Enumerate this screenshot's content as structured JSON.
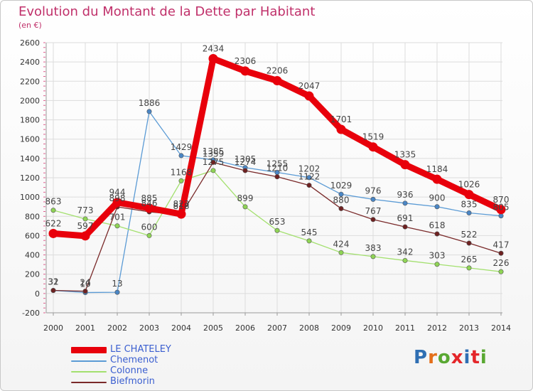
{
  "title": "Evolution du Montant de la Dette par Habitant",
  "subtitle": "(en €)",
  "logo": {
    "text": "Proxiti",
    "colors": [
      "#2f6fb3",
      "#e46f1a",
      "#59a832",
      "#e4262a",
      "#2f6fb3",
      "#e4262a",
      "#59a832"
    ]
  },
  "chart_data": {
    "type": "line",
    "x": [
      "2000",
      "2001",
      "2002",
      "2003",
      "2004",
      "2005",
      "2006",
      "2007",
      "2008",
      "2009",
      "2010",
      "2011",
      "2012",
      "2013",
      "2014"
    ],
    "ylim": [
      -200,
      2600
    ],
    "yticks": [
      "-200",
      "0",
      "200",
      "400",
      "600",
      "800",
      "1000",
      "1200",
      "1400",
      "1600",
      "1800",
      "2000",
      "2200",
      "2400",
      "2600"
    ],
    "grid": true,
    "legend_position": "bottom-left",
    "series": [
      {
        "name": "LE CHATELEY",
        "color": "#e8000b",
        "marker_color": "#e8000b",
        "values": [
          622,
          597,
          944,
          885,
          823,
          2434,
          2306,
          2206,
          2047,
          1701,
          1519,
          1335,
          1184,
          1026,
          870
        ],
        "labels": [
          "622",
          "597",
          "944",
          "885",
          "823",
          "2434",
          "2306",
          "2206",
          "2047",
          "1701",
          "1519",
          "1335",
          "1184",
          "1026",
          "870"
        ]
      },
      {
        "name": "Chemenot",
        "color": "#5b9bd5",
        "marker_color": "#4a86c5",
        "values": [
          31,
          10,
          13,
          1886,
          1429,
          1385,
          1305,
          1255,
          1202,
          1029,
          976,
          936,
          900,
          835,
          805
        ],
        "labels": [
          "31",
          "10",
          "13",
          "1886",
          "1429",
          "1385",
          "1305",
          "1255",
          "1202",
          "1029",
          "976",
          "936",
          "900",
          "835",
          "805"
        ]
      },
      {
        "name": "Colonne",
        "color": "#a3e06e",
        "marker_color": "#8fd455",
        "values": [
          863,
          773,
          701,
          600,
          1168,
          1275,
          899,
          653,
          545,
          424,
          383,
          342,
          303,
          265,
          226
        ],
        "labels": [
          "863",
          "773",
          "701",
          "600",
          "1168",
          "1275",
          "899",
          "653",
          "545",
          "424",
          "383",
          "342",
          "303",
          "265",
          "226"
        ]
      },
      {
        "name": "Biefmorin",
        "color": "#7a2a2a",
        "marker_color": "#6e2121",
        "values": [
          32,
          24,
          898,
          846,
          818,
          1359,
          1274,
          1210,
          1122,
          880,
          767,
          691,
          618,
          522,
          417
        ],
        "labels": [
          "32",
          "24",
          "898",
          "846",
          "818",
          "1359",
          "1274",
          "1210",
          "1122",
          "880",
          "767",
          "691",
          "618",
          "522",
          "417"
        ]
      }
    ]
  }
}
